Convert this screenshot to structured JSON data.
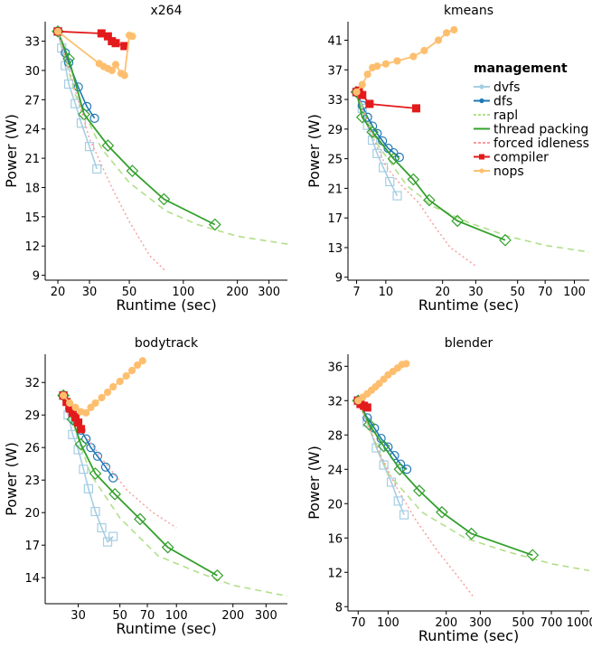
{
  "legend": {
    "title": "management",
    "items": [
      {
        "label": "dvfs",
        "color": "#a6cee3"
      },
      {
        "label": "dfs",
        "color": "#1f78b4"
      },
      {
        "label": "rapl",
        "color": "#b2df8a"
      },
      {
        "label": "thread packing",
        "color": "#33a02c"
      },
      {
        "label": "forced idleness",
        "color": "#fb9a99"
      },
      {
        "label": "compiler",
        "color": "#e31a1c"
      },
      {
        "label": "nops",
        "color": "#fdbf6f"
      }
    ]
  },
  "chart_data": [
    {
      "type": "scatter",
      "title": "x264",
      "xlabel": "Runtime (sec)",
      "ylabel": "Power (W)",
      "xscale": "log",
      "xlim": [
        17,
        380
      ],
      "ylim": [
        8.5,
        35
      ],
      "xticks": [
        20,
        30,
        50,
        100,
        200,
        300
      ],
      "yticks": [
        9,
        12,
        15,
        18,
        21,
        24,
        27,
        30,
        33
      ],
      "grid": false,
      "legend_position": "none",
      "series": [
        {
          "name": "dvfs",
          "x": [
            20,
            21,
            22,
            23,
            25,
            27,
            30,
            33
          ],
          "y": [
            34.0,
            32.3,
            30.5,
            28.6,
            26.6,
            24.6,
            22.2,
            19.9
          ]
        },
        {
          "name": "dfs",
          "x": [
            20,
            22,
            23,
            26,
            29,
            32
          ],
          "y": [
            34.0,
            31.8,
            30.8,
            28.3,
            26.3,
            25.1
          ]
        },
        {
          "name": "rapl",
          "x": [
            20,
            25,
            35,
            50,
            80,
            120,
            200,
            380
          ],
          "y": [
            34.0,
            27.5,
            22.0,
            18.5,
            15.6,
            14.2,
            13.0,
            12.2
          ]
        },
        {
          "name": "thread packing",
          "x": [
            20,
            23,
            28,
            38,
            52,
            78,
            150
          ],
          "y": [
            34.0,
            31.2,
            25.5,
            22.3,
            19.7,
            16.8,
            14.2
          ]
        },
        {
          "name": "forced idleness",
          "x": [
            20,
            25,
            30,
            40,
            50,
            65,
            80
          ],
          "y": [
            34.0,
            28.0,
            23.0,
            18.0,
            14.5,
            11.0,
            9.4
          ]
        },
        {
          "name": "compiler",
          "x": [
            20,
            35,
            38,
            40,
            42,
            47
          ],
          "y": [
            34.0,
            33.8,
            33.5,
            33.0,
            32.8,
            32.5
          ]
        },
        {
          "name": "nops",
          "x": [
            20,
            34,
            36,
            38,
            40,
            42,
            45,
            47,
            50,
            52
          ],
          "y": [
            34.0,
            30.7,
            30.4,
            30.2,
            30.0,
            30.6,
            29.7,
            29.5,
            33.6,
            33.5
          ]
        }
      ]
    },
    {
      "type": "scatter",
      "title": "kmeans",
      "xlabel": "Runtime (sec)",
      "ylabel": "Power (W)",
      "xscale": "log",
      "xlim": [
        6.3,
        120
      ],
      "ylim": [
        8.6,
        43.5
      ],
      "xticks": [
        7,
        10,
        20,
        30,
        50,
        70,
        100
      ],
      "yticks": [
        9,
        13,
        17,
        21,
        25,
        29,
        33,
        37,
        41
      ],
      "grid": false,
      "legend_position": "right",
      "series": [
        {
          "name": "dvfs",
          "x": [
            7,
            7.5,
            8,
            8.5,
            9,
            9.7,
            10.5,
            11.5
          ],
          "y": [
            34.0,
            31.8,
            29.5,
            27.5,
            25.7,
            23.8,
            21.9,
            20.0
          ]
        },
        {
          "name": "dfs",
          "x": [
            7,
            7.5,
            8,
            8.5,
            9,
            9.6,
            10.3,
            11,
            11.8
          ],
          "y": [
            34.0,
            32.2,
            30.6,
            29.4,
            28.4,
            27.4,
            26.4,
            25.8,
            25.2
          ]
        },
        {
          "name": "rapl",
          "x": [
            7,
            9,
            13,
            18,
            28,
            45,
            70,
            120
          ],
          "y": [
            34.0,
            27.0,
            21.3,
            18.5,
            16.3,
            14.5,
            13.3,
            12.4
          ]
        },
        {
          "name": "thread packing",
          "x": [
            7,
            7.5,
            8.5,
            11,
            14,
            17,
            24,
            43
          ],
          "y": [
            34.0,
            30.6,
            28.6,
            25.0,
            22.2,
            19.4,
            16.6,
            14.0
          ]
        },
        {
          "name": "forced idleness",
          "x": [
            7,
            8.5,
            10,
            12,
            15,
            18,
            22,
            30
          ],
          "y": [
            34.0,
            28.0,
            24.0,
            21.5,
            19.0,
            16.0,
            13.0,
            10.5
          ]
        },
        {
          "name": "compiler",
          "x": [
            7,
            7.2,
            7.5,
            8.2,
            14.5
          ],
          "y": [
            34.0,
            34.2,
            33.6,
            32.4,
            31.8
          ]
        },
        {
          "name": "nops",
          "x": [
            7,
            7.5,
            8,
            8.5,
            9,
            10,
            11.5,
            14,
            16,
            19,
            21,
            23
          ],
          "y": [
            34.0,
            35.0,
            36.4,
            37.3,
            37.5,
            37.8,
            38.2,
            38.8,
            39.6,
            41.0,
            42.0,
            42.4
          ]
        }
      ]
    },
    {
      "type": "scatter",
      "title": "bodytrack",
      "xlabel": "Runtime (sec)",
      "ylabel": "Power (W)",
      "xscale": "log",
      "xlim": [
        20,
        390
      ],
      "ylim": [
        11.6,
        34.6
      ],
      "xticks": [
        30,
        50,
        70,
        100,
        200,
        300
      ],
      "yticks": [
        14,
        17,
        20,
        23,
        26,
        29,
        32
      ],
      "grid": false,
      "legend_position": "none",
      "series": [
        {
          "name": "dvfs",
          "x": [
            25,
            26.5,
            28,
            30,
            32,
            34,
            37,
            40,
            43,
            46
          ],
          "y": [
            30.8,
            29.0,
            27.2,
            25.8,
            24.0,
            22.2,
            20.1,
            18.6,
            17.3,
            17.8
          ]
        },
        {
          "name": "dfs",
          "x": [
            25,
            27,
            29,
            31,
            33,
            35,
            38,
            42,
            46
          ],
          "y": [
            30.8,
            29.6,
            28.4,
            27.6,
            26.8,
            26.0,
            25.2,
            24.2,
            23.2
          ]
        },
        {
          "name": "rapl",
          "x": [
            25,
            35,
            50,
            80,
            130,
            200,
            390
          ],
          "y": [
            30.8,
            23.5,
            19.5,
            16.0,
            14.5,
            13.3,
            12.3
          ]
        },
        {
          "name": "thread packing",
          "x": [
            25,
            28,
            31,
            37,
            47,
            64,
            90,
            165
          ],
          "y": [
            30.8,
            28.6,
            26.3,
            23.6,
            21.7,
            19.4,
            16.8,
            14.2
          ]
        },
        {
          "name": "forced idleness",
          "x": [
            25,
            30,
            40,
            55,
            75,
            100
          ],
          "y": [
            30.8,
            28.0,
            25.0,
            22.0,
            20.0,
            18.6
          ]
        },
        {
          "name": "compiler",
          "x": [
            25,
            26,
            27,
            28,
            29,
            30,
            31
          ],
          "y": [
            30.8,
            30.2,
            29.6,
            29.2,
            28.8,
            28.3,
            27.7
          ]
        },
        {
          "name": "nops",
          "x": [
            25,
            27,
            29,
            31,
            33,
            35,
            37,
            40,
            43,
            46,
            50,
            54,
            58,
            62,
            66
          ],
          "y": [
            30.8,
            30.1,
            29.7,
            29.3,
            29.2,
            29.7,
            30.1,
            30.6,
            31.1,
            31.6,
            32.1,
            32.6,
            33.1,
            33.6,
            34.0
          ]
        }
      ]
    },
    {
      "type": "scatter",
      "title": "blender",
      "xlabel": "Runtime (sec)",
      "ylabel": "Power (W)",
      "xscale": "log",
      "xlim": [
        62,
        1100
      ],
      "ylim": [
        7.5,
        37.4
      ],
      "xticks": [
        70,
        100,
        200,
        300,
        500,
        700,
        1000
      ],
      "yticks": [
        8,
        12,
        16,
        20,
        24,
        28,
        32,
        36
      ],
      "grid": false,
      "legend_position": "none",
      "series": [
        {
          "name": "dvfs",
          "x": [
            70,
            78,
            87,
            95,
            104,
            113,
            121
          ],
          "y": [
            32.0,
            29.5,
            26.5,
            24.5,
            22.5,
            20.3,
            18.7
          ]
        },
        {
          "name": "dfs",
          "x": [
            70,
            78,
            85,
            92,
            100,
            108,
            116,
            125
          ],
          "y": [
            32.0,
            30.0,
            28.8,
            27.6,
            26.6,
            25.6,
            24.6,
            24.0
          ]
        },
        {
          "name": "rapl",
          "x": [
            70,
            100,
            150,
            250,
            400,
            700,
            1100
          ],
          "y": [
            32.0,
            23.5,
            19.0,
            16.0,
            14.5,
            13.0,
            12.2
          ]
        },
        {
          "name": "thread packing",
          "x": [
            70,
            80,
            95,
            115,
            145,
            190,
            270,
            560
          ],
          "y": [
            32.0,
            29.2,
            26.7,
            24.0,
            21.5,
            19.0,
            16.5,
            14.0
          ]
        },
        {
          "name": "forced idleness",
          "x": [
            70,
            90,
            110,
            140,
            180,
            230,
            280
          ],
          "y": [
            32.0,
            26.0,
            22.0,
            18.0,
            14.5,
            11.5,
            9.0
          ]
        },
        {
          "name": "compiler",
          "x": [
            70,
            72,
            75,
            78
          ],
          "y": [
            32.0,
            31.6,
            31.4,
            31.2
          ]
        },
        {
          "name": "nops",
          "x": [
            70,
            74,
            78,
            82,
            86,
            90,
            95,
            100,
            106,
            112,
            118,
            124
          ],
          "y": [
            32.0,
            32.4,
            32.8,
            33.2,
            33.6,
            34.0,
            34.5,
            35.0,
            35.4,
            35.8,
            36.2,
            36.3
          ]
        }
      ]
    }
  ]
}
